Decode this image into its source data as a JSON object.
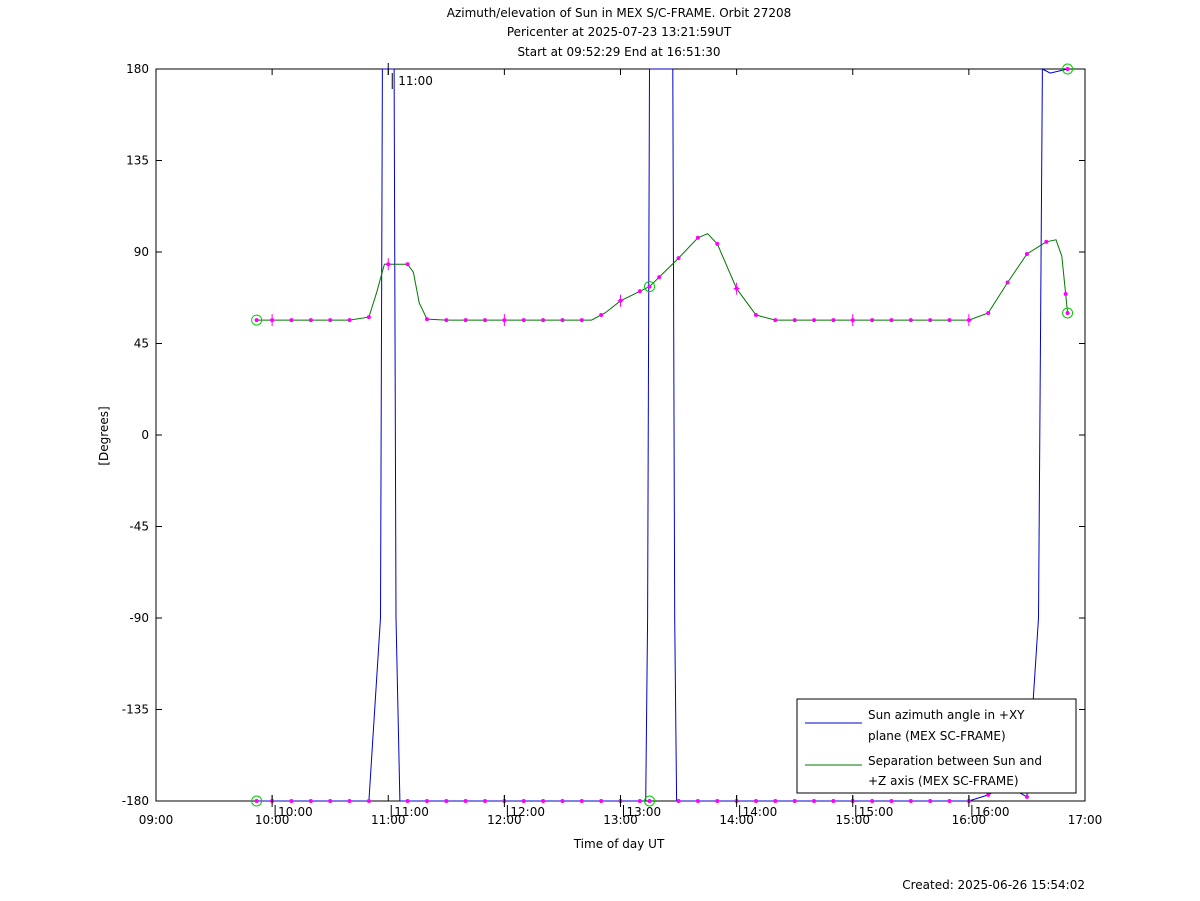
{
  "chart_data": {
    "type": "line",
    "title_lines": [
      "Azimuth/elevation of Sun in MEX S/C-FRAME.  Orbit 27208",
      "Pericenter at 2025-07-23 13:21:59UT",
      "Start at 09:52:29 End at 16:51:30"
    ],
    "xlabel": "Time of day UT",
    "ylabel": "[Degrees]",
    "xlim": [
      "09:00",
      "17:00"
    ],
    "ylim": [
      -180,
      180
    ],
    "x_ticks": [
      "09:00",
      "10:00",
      "11:00",
      "12:00",
      "13:00",
      "14:00",
      "15:00",
      "16:00",
      "17:00"
    ],
    "y_ticks": [
      "180",
      "135",
      "90",
      "45",
      "0",
      "-45",
      "-90",
      "-135",
      "-180"
    ],
    "inner_time_labels": [
      "10:00",
      "11:00",
      "12:00",
      "13:00",
      "14:00",
      "15:00",
      "16:00"
    ],
    "legend_position": "bottom-right",
    "colors": {
      "azimuth": "#0000cc",
      "separation": "#007700",
      "markers": "#ff00ff",
      "circles": "#00cc00"
    },
    "series": [
      {
        "name": "Sun azimuth angle in +XY plane (MEX SC-FRAME)",
        "legend_lines": [
          "Sun azimuth angle in +XY",
          "plane (MEX SC-FRAME)"
        ],
        "points": [
          [
            "09:52",
            -180
          ],
          [
            "10:50",
            -180
          ],
          [
            "10:56",
            -90
          ],
          [
            "10:57",
            180
          ],
          [
            "11:03",
            180
          ],
          [
            "11:04",
            -90
          ],
          [
            "11:06",
            -180
          ],
          [
            "13:13",
            -180
          ],
          [
            "13:14",
            -90
          ],
          [
            "13:15",
            180
          ],
          [
            "13:27",
            180
          ],
          [
            "13:28",
            -90
          ],
          [
            "13:29",
            -180
          ],
          [
            "16:00",
            -180
          ],
          [
            "16:10",
            -177
          ],
          [
            "16:19",
            -172
          ],
          [
            "16:30",
            -178
          ],
          [
            "16:36",
            -90
          ],
          [
            "16:38",
            180
          ],
          [
            "16:42",
            178
          ],
          [
            "16:51",
            180
          ]
        ]
      },
      {
        "name": "Separation between Sun and +Z axis (MEX SC-FRAME)",
        "legend_lines": [
          "Separation between Sun and",
          "+Z axis (MEX SC-FRAME)"
        ],
        "points": [
          [
            "09:52",
            56.5
          ],
          [
            "10:40",
            56.5
          ],
          [
            "10:50",
            58
          ],
          [
            "10:54",
            70
          ],
          [
            "10:58",
            84
          ],
          [
            "11:10",
            84
          ],
          [
            "11:13",
            80
          ],
          [
            "11:16",
            65
          ],
          [
            "11:20",
            57
          ],
          [
            "11:30",
            56.5
          ],
          [
            "12:45",
            56.5
          ],
          [
            "12:52",
            60
          ],
          [
            "13:00",
            66
          ],
          [
            "13:15",
            73
          ],
          [
            "13:30",
            87
          ],
          [
            "13:40",
            97
          ],
          [
            "13:45",
            99
          ],
          [
            "13:50",
            94
          ],
          [
            "14:00",
            72
          ],
          [
            "14:10",
            59
          ],
          [
            "14:20",
            56.5
          ],
          [
            "16:00",
            56.5
          ],
          [
            "16:10",
            60
          ],
          [
            "16:20",
            75
          ],
          [
            "16:30",
            89
          ],
          [
            "16:40",
            95
          ],
          [
            "16:45",
            96
          ],
          [
            "16:48",
            88
          ],
          [
            "16:51",
            60
          ]
        ]
      }
    ]
  },
  "footer": {
    "created": "Created: 2025-06-26 15:54:02"
  }
}
